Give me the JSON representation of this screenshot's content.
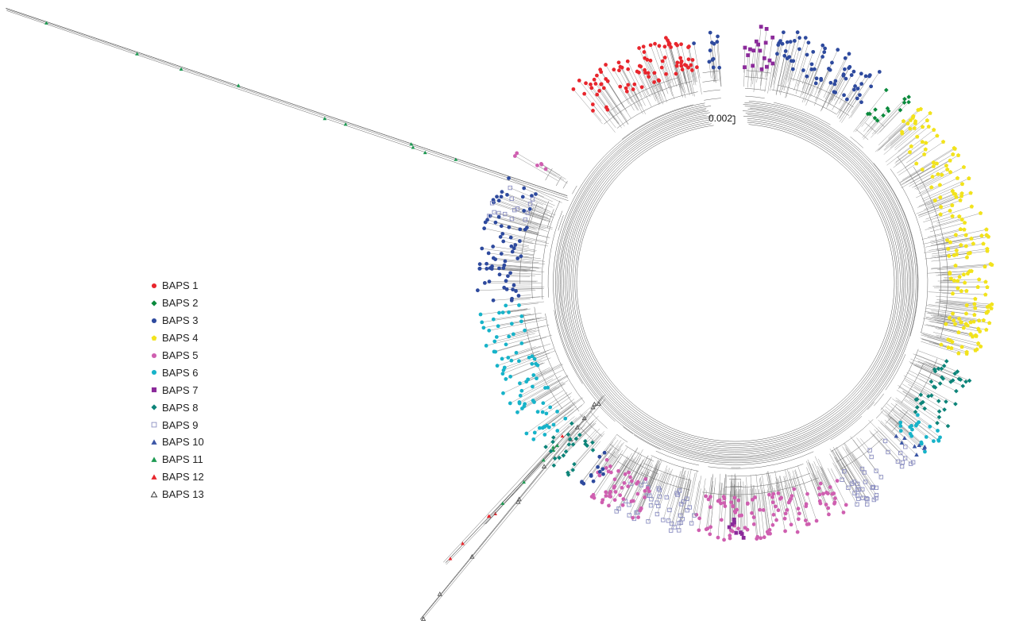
{
  "scale_bar_label": "0.002",
  "legend": [
    {
      "label": "BAPS 1",
      "color": "#e8262d",
      "shape": "circle"
    },
    {
      "label": "BAPS 2",
      "color": "#0a8a3c",
      "shape": "diamond"
    },
    {
      "label": "BAPS 3",
      "color": "#2e4a9e",
      "shape": "circle"
    },
    {
      "label": "BAPS 4",
      "color": "#f2e31c",
      "shape": "pentagon"
    },
    {
      "label": "BAPS 5",
      "color": "#cf5fb0",
      "shape": "circle"
    },
    {
      "label": "BAPS 6",
      "color": "#17b3c9",
      "shape": "circle"
    },
    {
      "label": "BAPS 7",
      "color": "#8b2a9a",
      "shape": "square"
    },
    {
      "label": "BAPS 8",
      "color": "#0d8479",
      "shape": "diamond"
    },
    {
      "label": "BAPS 9",
      "color": "#8c8fc2",
      "shape": "open-square"
    },
    {
      "label": "BAPS 10",
      "color": "#3a55a5",
      "shape": "triangle"
    },
    {
      "label": "BAPS 11",
      "color": "#1d9a52",
      "shape": "triangle"
    },
    {
      "label": "BAPS 12",
      "color": "#e8262d",
      "shape": "triangle"
    },
    {
      "label": "BAPS 13",
      "color": "#333333",
      "shape": "open-triangle"
    }
  ],
  "tree_clusters": [
    {
      "cluster": "BAPS 1",
      "arc_deg": [
        -130,
        -100
      ],
      "count": 90
    },
    {
      "cluster": "BAPS 3",
      "arc_deg": [
        -100,
        -94
      ],
      "count": 12
    },
    {
      "cluster": "BAPS 7",
      "arc_deg": [
        -88,
        -80
      ],
      "count": 18
    },
    {
      "cluster": "BAPS 3",
      "arc_deg": [
        -80,
        -55
      ],
      "count": 70
    },
    {
      "cluster": "BAPS 2",
      "arc_deg": [
        -52,
        -46
      ],
      "count": 14
    },
    {
      "cluster": "BAPS 4",
      "arc_deg": [
        -44,
        18
      ],
      "count": 170
    },
    {
      "cluster": "BAPS 8",
      "arc_deg": [
        20,
        36
      ],
      "count": 40
    },
    {
      "cluster": "BAPS 6",
      "arc_deg": [
        36,
        42
      ],
      "count": 22
    },
    {
      "cluster": "BAPS 10",
      "arc_deg": [
        40,
        44
      ],
      "count": 8
    },
    {
      "cluster": "BAPS 9",
      "arc_deg": [
        44,
        62
      ],
      "count": 40
    },
    {
      "cluster": "BAPS 5",
      "arc_deg": [
        62,
        100
      ],
      "count": 110
    },
    {
      "cluster": "BAPS 7",
      "arc_deg": [
        88,
        92
      ],
      "count": 8
    },
    {
      "cluster": "BAPS 9",
      "arc_deg": [
        100,
        118
      ],
      "count": 45
    },
    {
      "cluster": "BAPS 5",
      "arc_deg": [
        112,
        126
      ],
      "count": 50
    },
    {
      "cluster": "BAPS 3",
      "arc_deg": [
        124,
        128
      ],
      "count": 12
    },
    {
      "cluster": "BAPS 8",
      "arc_deg": [
        130,
        140
      ],
      "count": 25
    },
    {
      "cluster": "BAPS 6",
      "arc_deg": [
        140,
        175
      ],
      "count": 80
    },
    {
      "cluster": "BAPS 3",
      "arc_deg": [
        175,
        205
      ],
      "count": 70
    },
    {
      "cluster": "BAPS 9",
      "arc_deg": [
        195,
        203
      ],
      "count": 14
    },
    {
      "cluster": "BAPS 5",
      "arc_deg": [
        208,
        212
      ],
      "count": 6
    }
  ]
}
